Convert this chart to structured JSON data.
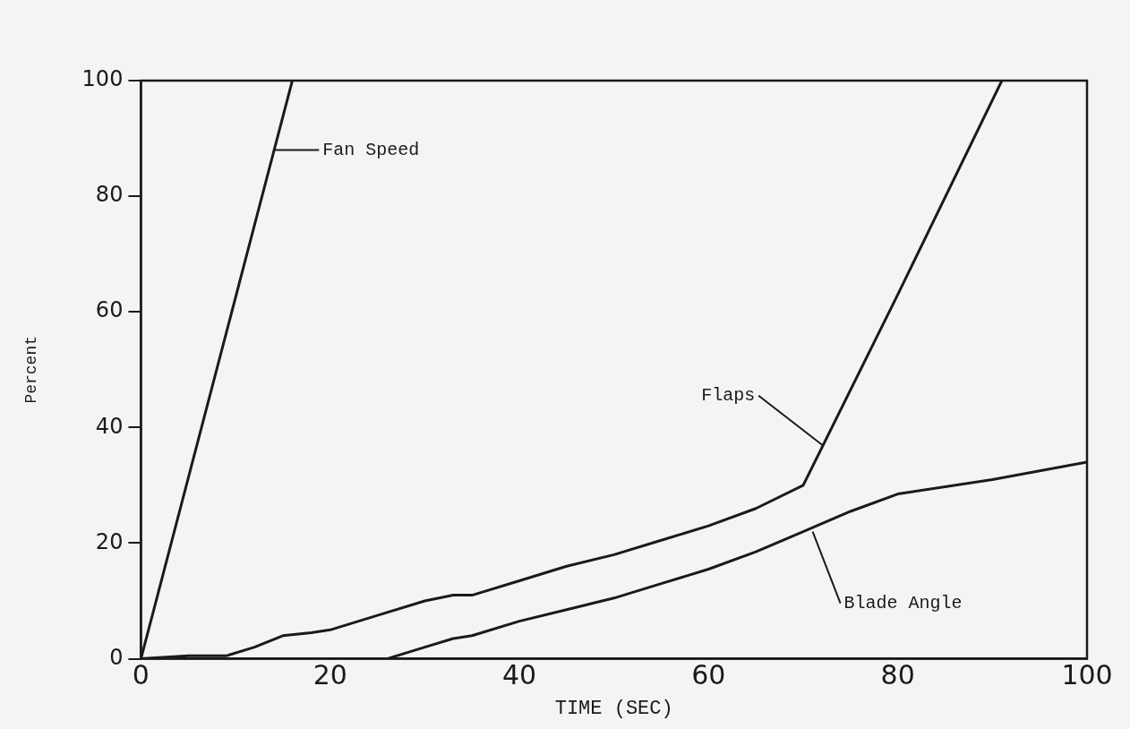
{
  "chart_data": {
    "type": "line",
    "xlabel": "TIME (SEC)",
    "ylabel": "Percent",
    "xlim": [
      0,
      100
    ],
    "xticks": [
      0,
      20,
      40,
      60,
      80,
      100
    ],
    "ylim": [
      0,
      100
    ],
    "yticks": [
      0,
      20,
      40,
      60,
      80,
      100
    ],
    "grid": false,
    "legend": false,
    "marker": "none",
    "line_style": "solid",
    "series": [
      {
        "color": "#1a1a1a",
        "x": [
          0,
          16
        ],
        "values": [
          0,
          100
        ]
      },
      {
        "color": "#1a1a1a",
        "x": [
          0,
          5,
          9,
          12,
          15,
          18,
          20,
          25,
          30,
          33,
          35,
          40,
          45,
          50,
          55,
          60,
          65,
          70,
          80,
          91
        ],
        "values": [
          0,
          0.5,
          0.5,
          2,
          4,
          4.5,
          5,
          7.5,
          10,
          11,
          11,
          13.5,
          16,
          18,
          20.5,
          23,
          26,
          30,
          63,
          100
        ]
      },
      {
        "color": "#1a1a1a",
        "x": [
          0,
          26,
          30,
          33,
          35,
          40,
          45,
          50,
          55,
          60,
          65,
          70,
          75,
          80,
          90,
          100
        ],
        "values": [
          0,
          0,
          2,
          3.5,
          4,
          6.5,
          8.5,
          10.5,
          13,
          15.5,
          18.5,
          22,
          25.5,
          28.5,
          31,
          34
        ]
      }
    ],
    "annotations": [
      {
        "text": "Fan Speed",
        "x": 14,
        "y": 88
      },
      {
        "text": "Flaps",
        "x": 72,
        "y": 37
      },
      {
        "text": "Blade Angle",
        "x": 71,
        "y": 22
      }
    ]
  }
}
